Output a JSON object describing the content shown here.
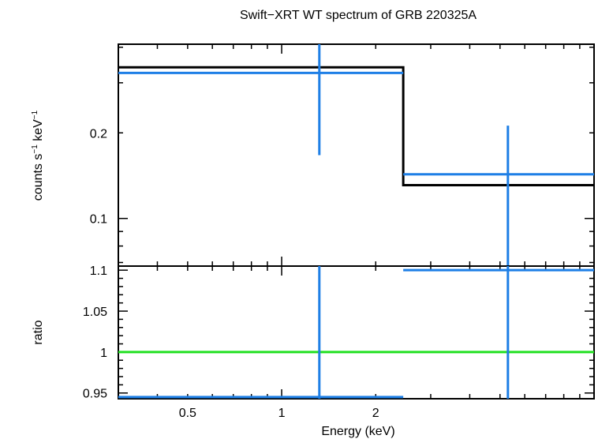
{
  "chart_data": [
    {
      "type": "scatter",
      "panel": "spectrum",
      "title": "Swift−XRT WT spectrum of GRB 220325A",
      "ylabel": "counts s",
      "ylabel_exp1": "−1",
      "ylabel_mid": " keV",
      "ylabel_exp2": "−1",
      "xscale": "log",
      "yscale": "log",
      "xlim": [
        0.3,
        10
      ],
      "ylim": [
        0.068,
        0.41
      ],
      "y_ticks": [
        {
          "value": 0.1,
          "label": "0.1"
        },
        {
          "value": 0.2,
          "label": "0.2"
        }
      ],
      "series": [
        {
          "role": "data",
          "color": "#1e7fe6",
          "points": [
            {
              "x": 1.32,
              "x_low": 0.3,
              "x_high": 2.45,
              "y": 0.325,
              "y_low": 0.167,
              "y_high": 0.41
            },
            {
              "x": 5.3,
              "x_low": 2.45,
              "x_high": 10,
              "y": 0.143,
              "y_low": 0.068,
              "y_high": 0.212
            }
          ]
        },
        {
          "role": "model",
          "type": "step",
          "color": "#000000",
          "bins": [
            {
              "x_low": 0.3,
              "x_high": 2.45,
              "y": 0.34
            },
            {
              "x_low": 2.45,
              "x_high": 10,
              "y": 0.131
            }
          ]
        }
      ]
    },
    {
      "type": "scatter",
      "panel": "ratio",
      "ylabel": "ratio",
      "xlabel": "Energy (keV)",
      "xscale": "log",
      "xlim": [
        0.3,
        10
      ],
      "ylim": [
        0.943,
        1.105
      ],
      "x_ticks": [
        {
          "value": 0.5,
          "label": "0.5"
        },
        {
          "value": 1,
          "label": "1"
        },
        {
          "value": 2,
          "label": "2"
        }
      ],
      "y_ticks": [
        {
          "value": 0.95,
          "label": "0.95"
        },
        {
          "value": 1.0,
          "label": "1"
        },
        {
          "value": 1.05,
          "label": "1.05"
        },
        {
          "value": 1.1,
          "label": "1.1"
        }
      ],
      "reference_line": {
        "y": 1,
        "color": "#22e022"
      },
      "series": [
        {
          "role": "data",
          "color": "#1e7fe6",
          "points": [
            {
              "x": 1.32,
              "x_low": 0.3,
              "x_high": 2.45,
              "y": 0.945,
              "y_low": 0.943,
              "y_high": 1.105
            },
            {
              "x": 5.3,
              "x_low": 2.45,
              "x_high": 10,
              "y": 1.1,
              "y_low": 0.943,
              "y_high": 1.105
            }
          ]
        }
      ]
    }
  ]
}
